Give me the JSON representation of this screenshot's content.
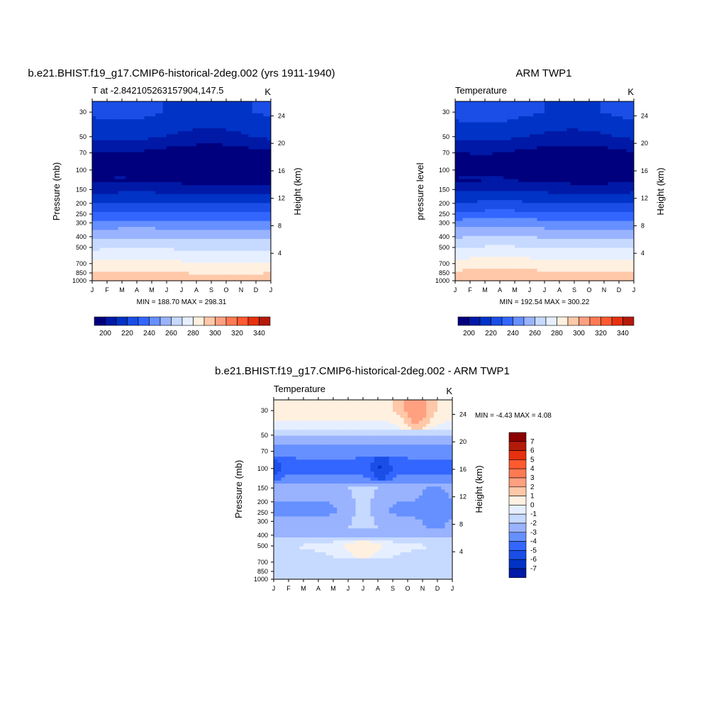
{
  "chart_data": [
    {
      "type": "heatmap",
      "title": "b.e21.BHIST.f19_g17.CMIP6-historical-2deg.002 (yrs 1911-1940)",
      "left_label": "T at -2.842105263157904,147.5",
      "right_label": "K",
      "ylabel": "Pressure (mb)",
      "y2label": "Height (km)",
      "x_ticks": [
        "J",
        "F",
        "M",
        "A",
        "M",
        "J",
        "J",
        "A",
        "S",
        "O",
        "N",
        "D",
        "J"
      ],
      "y_ticks": [
        "30",
        "50",
        "70",
        "100",
        "150",
        "200",
        "250",
        "300",
        "400",
        "500",
        "700",
        "850",
        "1000"
      ],
      "y2_ticks": [
        "24",
        "20",
        "16",
        "12",
        "8",
        "4"
      ],
      "minmax_text": "MIN = 188.70 MAX = 298.31",
      "colorbar_labels": [
        "200",
        "220",
        "240",
        "260",
        "280",
        "300",
        "320",
        "340"
      ],
      "levels_K": [
        190,
        200,
        210,
        220,
        230,
        240,
        250,
        260,
        270,
        280,
        290,
        300,
        310,
        320,
        330,
        340,
        350
      ],
      "profile": [
        {
          "p": 30,
          "t": 220
        },
        {
          "p": 50,
          "t": 210
        },
        {
          "p": 70,
          "t": 196
        },
        {
          "p": 100,
          "t": 193
        },
        {
          "p": 130,
          "t": 199
        },
        {
          "p": 150,
          "t": 206
        },
        {
          "p": 200,
          "t": 220
        },
        {
          "p": 250,
          "t": 232
        },
        {
          "p": 300,
          "t": 243
        },
        {
          "p": 400,
          "t": 258
        },
        {
          "p": 500,
          "t": 268
        },
        {
          "p": 700,
          "t": 282
        },
        {
          "p": 850,
          "t": 290
        },
        {
          "p": 1000,
          "t": 297
        }
      ]
    },
    {
      "type": "heatmap",
      "title": "ARM TWP1",
      "left_label": "Temperature",
      "right_label": "K",
      "ylabel": "pressure level",
      "y2label": "Height (km)",
      "x_ticks": [
        "J",
        "F",
        "M",
        "A",
        "M",
        "J",
        "J",
        "A",
        "S",
        "O",
        "N",
        "D",
        "J"
      ],
      "y_ticks": [
        "30",
        "50",
        "70",
        "100",
        "150",
        "200",
        "250",
        "300",
        "400",
        "500",
        "700",
        "850",
        "1000"
      ],
      "y2_ticks": [
        "24",
        "20",
        "16",
        "12",
        "8",
        "4"
      ],
      "minmax_text": "MIN = 192.54 MAX = 300.22",
      "colorbar_labels": [
        "200",
        "220",
        "240",
        "260",
        "280",
        "300",
        "320",
        "340"
      ],
      "levels_K": [
        190,
        200,
        210,
        220,
        230,
        240,
        250,
        260,
        270,
        280,
        290,
        300,
        310,
        320,
        330,
        340,
        350
      ],
      "profile": [
        {
          "p": 30,
          "t": 222
        },
        {
          "p": 50,
          "t": 210
        },
        {
          "p": 70,
          "t": 197
        },
        {
          "p": 100,
          "t": 194
        },
        {
          "p": 130,
          "t": 200
        },
        {
          "p": 150,
          "t": 207
        },
        {
          "p": 200,
          "t": 221
        },
        {
          "p": 250,
          "t": 233
        },
        {
          "p": 300,
          "t": 244
        },
        {
          "p": 400,
          "t": 259
        },
        {
          "p": 500,
          "t": 270
        },
        {
          "p": 700,
          "t": 284
        },
        {
          "p": 850,
          "t": 292
        },
        {
          "p": 1000,
          "t": 299
        }
      ]
    },
    {
      "type": "heatmap",
      "title": "b.e21.BHIST.f19_g17.CMIP6-historical-2deg.002 - ARM TWP1",
      "left_label": "Temperature",
      "right_label": "K",
      "ylabel": "Pressure (mb)",
      "y2label": "Height (km)",
      "x_ticks": [
        "J",
        "F",
        "M",
        "A",
        "M",
        "J",
        "J",
        "A",
        "S",
        "O",
        "N",
        "D",
        "J"
      ],
      "y_ticks": [
        "30",
        "50",
        "70",
        "100",
        "150",
        "200",
        "250",
        "300",
        "400",
        "500",
        "700",
        "850",
        "1000"
      ],
      "y2_ticks": [
        "24",
        "20",
        "16",
        "12",
        "8",
        "4"
      ],
      "minmax_text": "MIN =  -4.43 MAX =   4.08",
      "colorbar_labels": [
        "7",
        "6",
        "5",
        "4",
        "3",
        "2",
        "1",
        "0",
        "-1",
        "-2",
        "-3",
        "-4",
        "-5",
        "-6",
        "-7"
      ],
      "levels_K": [
        -8,
        -7,
        -6,
        -5,
        -4,
        -3,
        -2,
        -1,
        0,
        1,
        2,
        3,
        4,
        5,
        6,
        7,
        8
      ],
      "profile": [
        {
          "p": 30,
          "t": 1.8
        },
        {
          "p": 40,
          "t": 0.8
        },
        {
          "p": 50,
          "t": -0.8
        },
        {
          "p": 70,
          "t": -2.6
        },
        {
          "p": 100,
          "t": -3.6
        },
        {
          "p": 130,
          "t": -2.4
        },
        {
          "p": 150,
          "t": -1.6
        },
        {
          "p": 200,
          "t": -2.0
        },
        {
          "p": 250,
          "t": -2.1
        },
        {
          "p": 300,
          "t": -1.8
        },
        {
          "p": 400,
          "t": -1.4
        },
        {
          "p": 500,
          "t": 0.3
        },
        {
          "p": 700,
          "t": -0.6
        },
        {
          "p": 850,
          "t": -0.9
        },
        {
          "p": 1000,
          "t": -0.7
        }
      ]
    }
  ],
  "palette": [
    "#00007f",
    "#0019a6",
    "#0033c6",
    "#1a4ee6",
    "#3366ff",
    "#6690ff",
    "#99b3ff",
    "#c6d9ff",
    "#e6efff",
    "#fff0e0",
    "#ffc8a8",
    "#ffa080",
    "#ff7a52",
    "#ff5a30",
    "#e63010",
    "#b31a0a",
    "#8b0000"
  ]
}
